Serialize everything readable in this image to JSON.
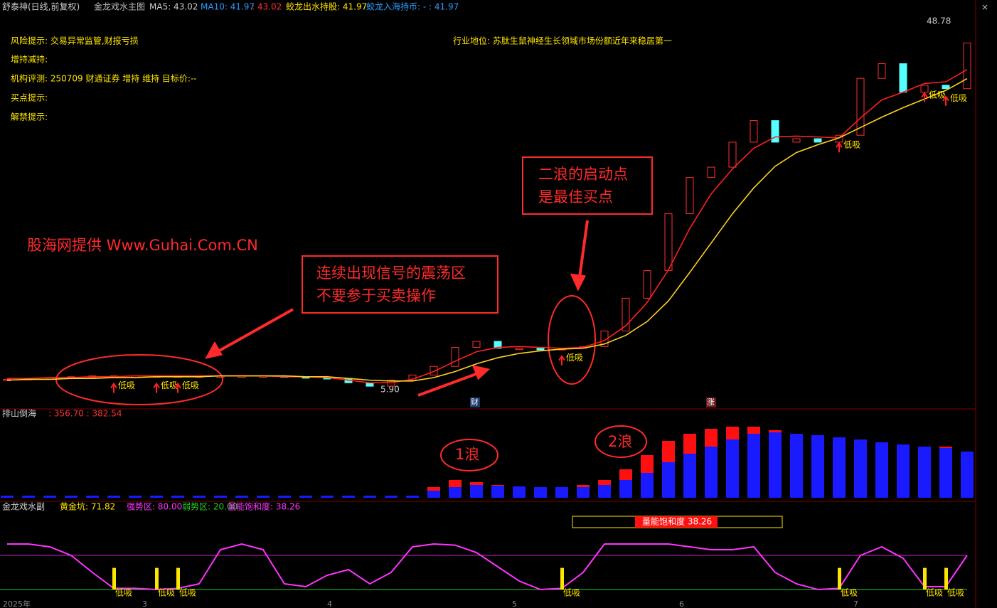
{
  "header": {
    "stock": "舒泰神(日线,前复权)",
    "indicator": "金龙戏水主图",
    "ma5": "MA5: 43.02",
    "ma10": "MA10: 41.97",
    "value3": ": 43.02",
    "hold": "蛟龙出水持股: 41.97",
    "cash": "蛟龙入海持币: - : 41.97"
  },
  "info": [
    "风险提示: 交易异常监管,财报亏损",
    "增持减持:",
    "机构评测: 250709 财通证券 增持 维持 目标价:--",
    "买点提示:",
    "解禁提示:"
  ],
  "industry": "行业地位: 苏肽生鼠神经生长领域市场份额近年来稳居第一",
  "annotations": {
    "watermark": "股海网提供 Www.Guhai.Com.CN",
    "box1": [
      "连续出现信号的震荡区",
      "不要参于买卖操作"
    ],
    "box2": [
      "二浪的启动点",
      "是最佳买点"
    ],
    "wave1": "1浪",
    "wave2": "2浪",
    "high": "48.78",
    "low": "5.90",
    "badge1": "财",
    "badge2": "涨"
  },
  "x_axis": [
    "2025年",
    "3",
    "4",
    "5",
    "6",
    "7"
  ],
  "chart_data": [
    {
      "type": "line",
      "ylim": [
        3.67,
        49.6
      ],
      "signals": [
        null,
        null,
        null,
        null,
        null,
        "低吸",
        null,
        "低吸",
        "低吸",
        null,
        null,
        null,
        null,
        null,
        null,
        null,
        null,
        null,
        null,
        null,
        null,
        null,
        null,
        null,
        null,
        null,
        "低吸",
        null,
        null,
        null,
        null,
        null,
        null,
        null,
        null,
        null,
        null,
        null,
        null,
        "低吸",
        null,
        null,
        null,
        "低吸",
        "低吸",
        null
      ],
      "series": [
        {
          "name": "close",
          "style": "body",
          "up_color": "#ff3030",
          "down_color": "#54ffff",
          "values": [
            7.1,
            7.2,
            7.3,
            7.4,
            7.5,
            7.5,
            7.5,
            7.5,
            7.5,
            7.5,
            7.5,
            7.5,
            7.5,
            7.4,
            7.3,
            7.2,
            6.7,
            6.3,
            7.0,
            7.6,
            8.6,
            10.8,
            11.5,
            10.7,
            10.7,
            10.5,
            10.7,
            10.9,
            12.7,
            16.5,
            19.7,
            26.3,
            30.5,
            31.7,
            34.6,
            37.1,
            34.6,
            35.0,
            34.6,
            35.4,
            42.0,
            43.7,
            40.4,
            41.2,
            40.8,
            46.1
          ]
        },
        {
          "name": "MA5",
          "style": "line",
          "color": "#ff2020",
          "values": [
            7.2,
            7.2,
            7.3,
            7.3,
            7.4,
            7.4,
            7.5,
            7.5,
            7.5,
            7.5,
            7.5,
            7.5,
            7.5,
            7.4,
            7.4,
            7.3,
            7.0,
            6.7,
            6.7,
            7.1,
            8.0,
            9.2,
            10.3,
            10.8,
            10.9,
            10.8,
            10.7,
            10.8,
            11.6,
            13.3,
            16.0,
            19.8,
            24.6,
            28.6,
            31.5,
            33.9,
            35.2,
            35.3,
            35.2,
            35.1,
            37.4,
            39.5,
            40.4,
            41.4,
            41.6,
            43.02
          ]
        },
        {
          "name": "MA10",
          "style": "line",
          "color": "#ffd21f",
          "values": [
            7.0,
            7.1,
            7.1,
            7.2,
            7.2,
            7.3,
            7.3,
            7.4,
            7.4,
            7.4,
            7.5,
            7.5,
            7.5,
            7.5,
            7.4,
            7.4,
            7.2,
            7.0,
            6.9,
            6.9,
            7.3,
            8.0,
            8.9,
            9.6,
            10.1,
            10.4,
            10.6,
            10.7,
            11.2,
            12.2,
            13.8,
            16.2,
            19.5,
            22.9,
            26.3,
            29.3,
            31.8,
            33.4,
            34.3,
            35.1,
            36.3,
            37.5,
            38.6,
            39.6,
            40.6,
            41.97
          ]
        }
      ]
    },
    {
      "type": "bar",
      "title": "排山倒海",
      "readout": ": 356.70 : 382.54",
      "ylim": [
        0,
        440
      ],
      "series": [
        {
          "name": "red",
          "color": "#ff1010",
          "values": [
            12,
            12,
            12,
            12,
            12,
            12,
            12,
            12,
            12,
            12,
            12,
            12,
            12,
            12,
            12,
            12,
            12,
            12,
            12,
            12,
            60,
            100,
            88,
            72,
            64,
            60,
            60,
            72,
            100,
            160,
            240,
            320,
            360,
            388,
            400,
            400,
            380,
            360,
            352,
            340,
            328,
            312,
            300,
            288,
            288,
            260
          ]
        },
        {
          "name": "blue",
          "color": "#1a1aff",
          "values": [
            12,
            12,
            12,
            12,
            12,
            12,
            12,
            12,
            12,
            12,
            12,
            12,
            12,
            12,
            12,
            12,
            12,
            12,
            12,
            12,
            40,
            60,
            72,
            68,
            64,
            60,
            60,
            60,
            72,
            100,
            140,
            200,
            248,
            288,
            328,
            360,
            368,
            360,
            352,
            340,
            328,
            312,
            300,
            288,
            280,
            260
          ]
        }
      ]
    },
    {
      "type": "line",
      "title": "金龙戏水副",
      "legend": [
        "黄金坑: 71.82",
        "强势区: 80.00",
        "弱势区: 20.00",
        "量能饱和度: 38.26"
      ],
      "box": "量能饱和度 38.26",
      "ylim": [
        -5,
        150
      ],
      "hlines": [
        {
          "value": 80,
          "color": "#d020d0"
        },
        {
          "value": 20,
          "color": "#20d020"
        }
      ],
      "series": [
        {
          "name": "osc",
          "color": "#ff33ff",
          "values": [
            100,
            100,
            95,
            80,
            50,
            22,
            22,
            20,
            22,
            30,
            90,
            100,
            90,
            30,
            25,
            45,
            55,
            30,
            50,
            95,
            100,
            98,
            85,
            60,
            35,
            20,
            22,
            50,
            100,
            100,
            100,
            100,
            95,
            90,
            90,
            95,
            50,
            30,
            20,
            22,
            80,
            95,
            75,
            25,
            25,
            80
          ]
        }
      ]
    }
  ]
}
